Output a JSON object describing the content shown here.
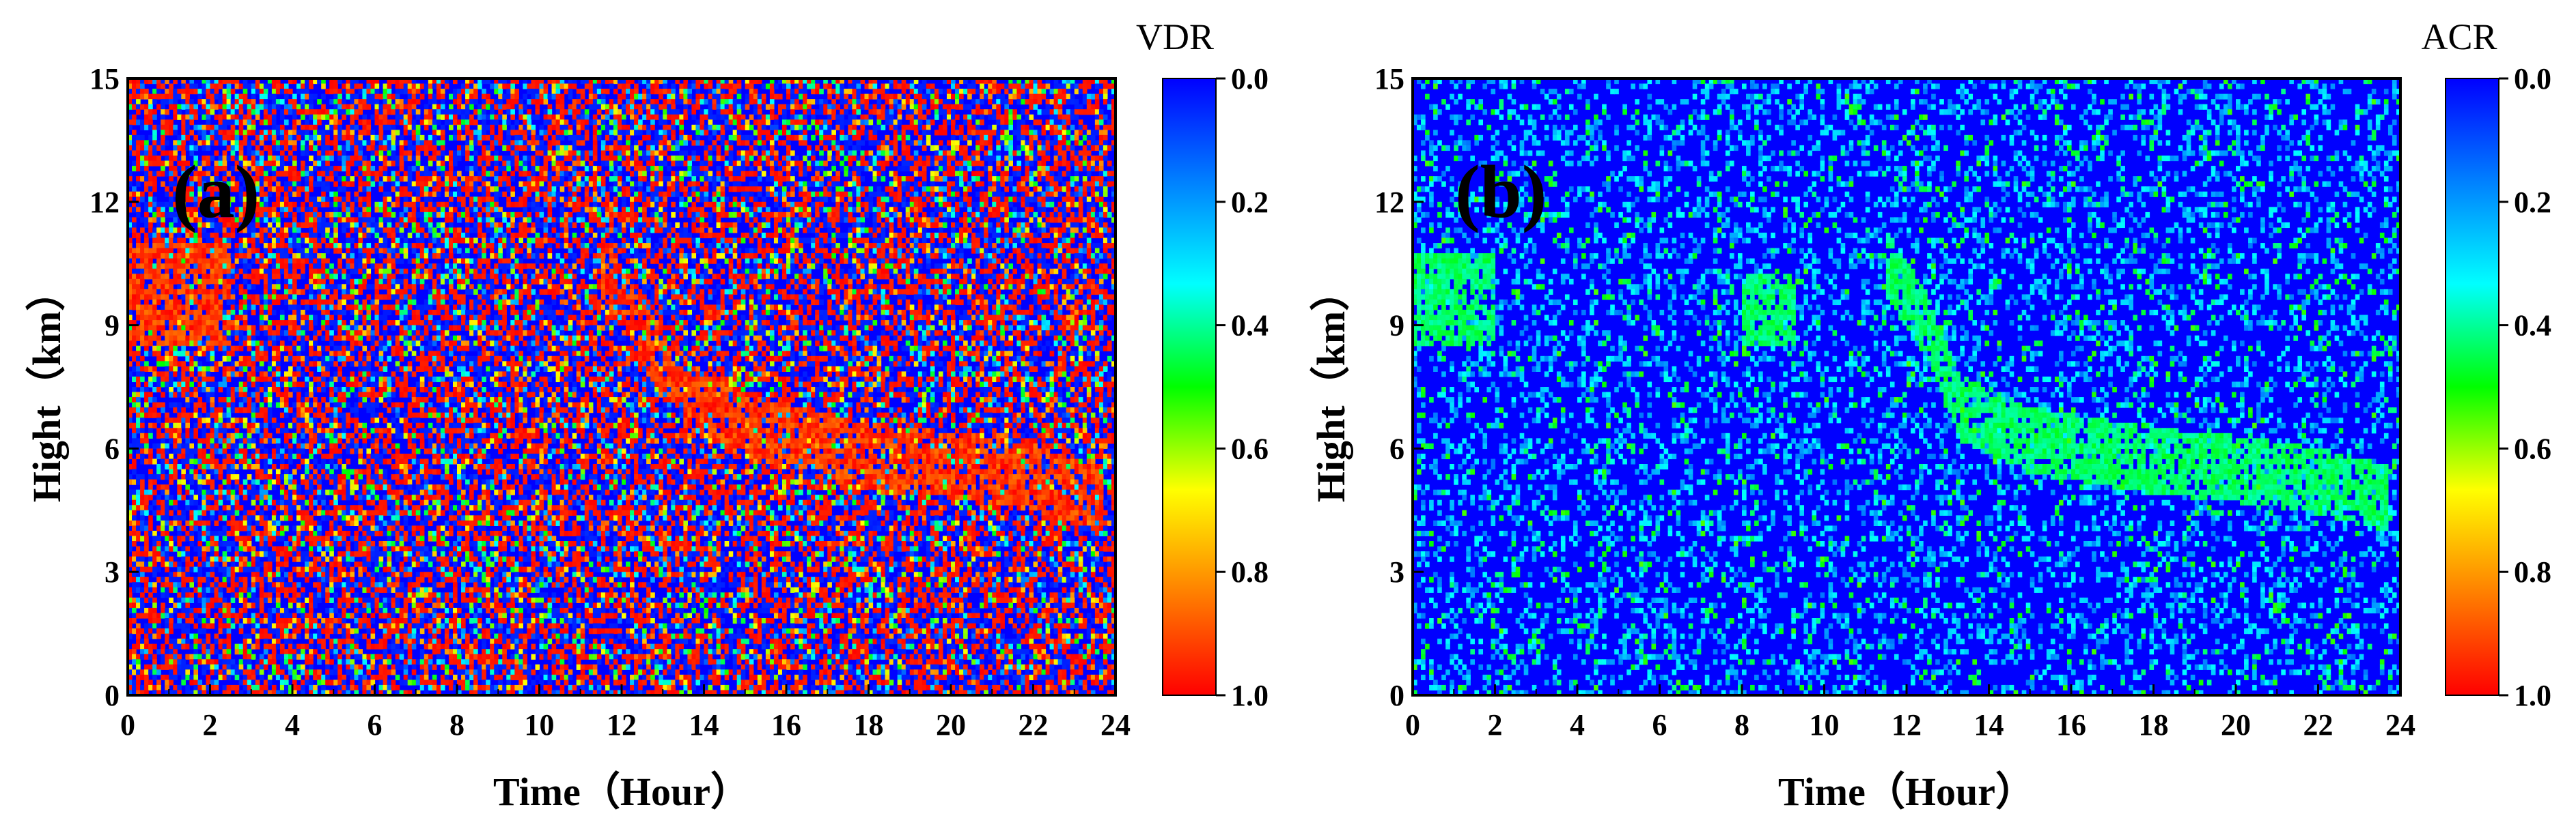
{
  "chart_data": [
    {
      "type": "heatmap",
      "panel_label": "(a)",
      "xlabel": "Time（Hour）",
      "ylabel": "Hight（km）",
      "xlim": [
        0,
        24
      ],
      "ylim": [
        0,
        15
      ],
      "x_ticks": [
        "0",
        "2",
        "4",
        "6",
        "8",
        "10",
        "12",
        "14",
        "16",
        "18",
        "20",
        "22",
        "24"
      ],
      "y_ticks": [
        "0",
        "3",
        "6",
        "9",
        "12",
        "15"
      ],
      "colorbar": {
        "title": "VDR",
        "range": [
          0.0,
          1.0
        ],
        "reversed": true,
        "ticks": [
          "0.0",
          "0.2",
          "0.4",
          "0.6",
          "0.8",
          "1.0"
        ],
        "colors": [
          "#0000ff",
          "#0080ff",
          "#00ffff",
          "#00ff00",
          "#ffff00",
          "#ff8000",
          "#ff0000"
        ]
      },
      "background": "noisy mixture of values across full range (mostly 0.0 and 1.0)",
      "features": [
        {
          "name": "cloud-layer-early",
          "x_range": [
            0,
            2.5
          ],
          "y_range": [
            8.5,
            11
          ],
          "value": 0.9
        },
        {
          "name": "cloud-descending-layer",
          "points": [
            [
              11.5,
              10.5
            ],
            [
              13,
              8
            ],
            [
              14,
              7
            ],
            [
              16,
              6.3
            ],
            [
              18,
              5.8
            ],
            [
              20,
              5.6
            ],
            [
              22,
              5.3
            ],
            [
              23.7,
              4.8
            ]
          ],
          "thickness_km": 1.6,
          "value": 0.9
        }
      ]
    },
    {
      "type": "heatmap",
      "panel_label": "(b)",
      "xlabel": "Time（Hour）",
      "ylabel": "Hight（km）",
      "xlim": [
        0,
        24
      ],
      "ylim": [
        0,
        15
      ],
      "x_ticks": [
        "0",
        "2",
        "4",
        "6",
        "8",
        "10",
        "12",
        "14",
        "16",
        "18",
        "20",
        "22",
        "24"
      ],
      "y_ticks": [
        "0",
        "3",
        "6",
        "9",
        "12",
        "15"
      ],
      "colorbar": {
        "title": "ACR",
        "range": [
          0.0,
          1.0
        ],
        "reversed": true,
        "ticks": [
          "0.0",
          "0.2",
          "0.4",
          "0.6",
          "0.8",
          "1.0"
        ],
        "colors": [
          "#0000ff",
          "#0080ff",
          "#00ffff",
          "#00ff00",
          "#ffff00",
          "#ff8000",
          "#ff0000"
        ]
      },
      "background": "mostly 0.0 with scattered 0.2-0.4 speckles",
      "features": [
        {
          "name": "cloud-layer-early",
          "x_range": [
            0,
            2
          ],
          "y_range": [
            8.5,
            10.8
          ],
          "value": 0.45
        },
        {
          "name": "cloud-patch-9h",
          "x_range": [
            8,
            9.3
          ],
          "y_range": [
            8.5,
            10.2
          ],
          "value": 0.4
        },
        {
          "name": "cloud-descending-layer",
          "points": [
            [
              11.5,
              10.5
            ],
            [
              12.5,
              9
            ],
            [
              13.3,
              7
            ],
            [
              15,
              6.2
            ],
            [
              18,
              5.7
            ],
            [
              20,
              5.5
            ],
            [
              22,
              5.2
            ],
            [
              23.7,
              4.8
            ]
          ],
          "thickness_km": 1.6,
          "value": 0.45
        }
      ]
    }
  ]
}
